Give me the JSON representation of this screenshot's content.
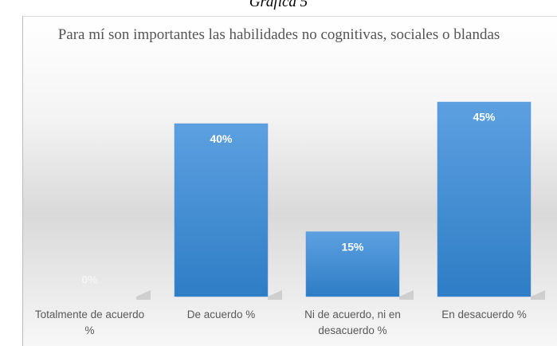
{
  "caption": "Gráfica 5",
  "chart_data": {
    "type": "bar",
    "title": "Para mí son importantes las habilidades no cognitivas, sociales o blandas",
    "categories": [
      "Totalmente de acuerdo %",
      "De acuerdo %",
      "Ni de acuerdo, ni en desacuerdo %",
      "En desacuerdo %"
    ],
    "values": [
      0,
      40,
      15,
      45
    ],
    "value_labels": [
      "0%",
      "40%",
      "15%",
      "45%"
    ],
    "color": "#4a90d6"
  }
}
